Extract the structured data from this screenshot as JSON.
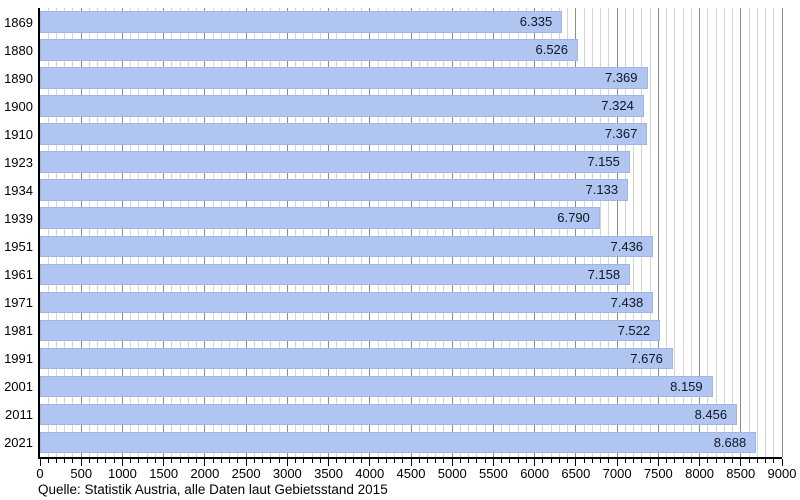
{
  "chart_data": {
    "type": "bar",
    "orientation": "horizontal",
    "title": "",
    "categories": [
      "1869",
      "1880",
      "1890",
      "1900",
      "1910",
      "1923",
      "1934",
      "1939",
      "1951",
      "1961",
      "1971",
      "1981",
      "1991",
      "2001",
      "2011",
      "2021"
    ],
    "values": [
      6335,
      6526,
      7369,
      7324,
      7367,
      7155,
      7133,
      6790,
      7436,
      7158,
      7438,
      7522,
      7676,
      8159,
      8456,
      8688
    ],
    "value_labels": [
      "6.335",
      "6.526",
      "7.369",
      "7.324",
      "7.367",
      "7.155",
      "7.133",
      "6.790",
      "7.436",
      "7.158",
      "7.438",
      "7.522",
      "7.676",
      "8.159",
      "8.456",
      "8.688"
    ],
    "xlim": [
      0,
      9000
    ],
    "x_major_tick": 500,
    "x_minor_tick": 100,
    "x_tick_labels": [
      "0",
      "500",
      "1000",
      "1500",
      "2000",
      "2500",
      "3000",
      "3500",
      "4000",
      "4500",
      "5000",
      "5500",
      "6000",
      "6500",
      "7000",
      "7500",
      "8000",
      "8500",
      "9000"
    ],
    "grid": "vertical, minor every 100, major every 500",
    "legend_position": "none",
    "source": "Quelle: Statistik Austria, alle Daten laut Gebietsstand 2015",
    "colors": {
      "bar_fill": "#b0c6f1",
      "bar_border": "#a0b5e4",
      "grid_minor": "#d4d4d4",
      "grid_major": "#8c8c8c",
      "axis": "#000000",
      "value_text": "#101524",
      "tick_text": "#000000"
    }
  }
}
